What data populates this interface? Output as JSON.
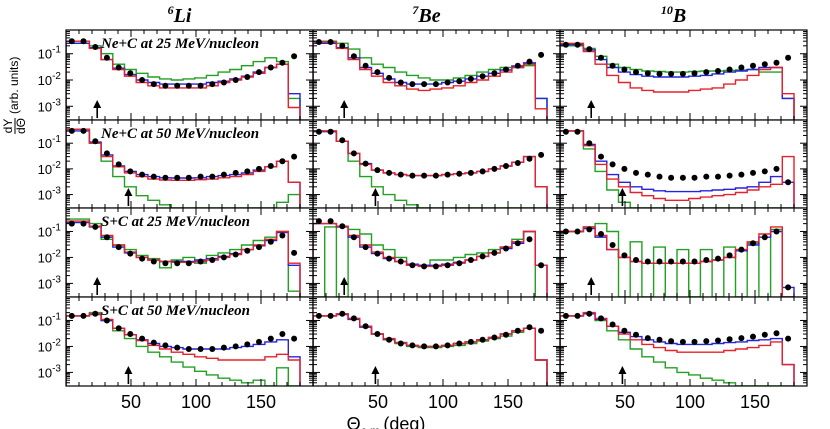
{
  "chart_data": {
    "type": "histogram-grid",
    "xlabel_main": "Θ",
    "xlabel_sub": "c.m.",
    "xlabel_unit": "(deg)",
    "ylabel_main": "(arb. units)",
    "ylabel_num": "dY",
    "ylabel_den": "dΘ",
    "xlim": [
      0,
      190
    ],
    "ylim_log": [
      0.0003,
      0.8
    ],
    "x_ticks": [
      50,
      100,
      150
    ],
    "x_tick_labels": [
      "50",
      "100",
      "150"
    ],
    "y_ticks": [
      0.1,
      0.01,
      0.001
    ],
    "y_tick_labels": [
      {
        "base": "10",
        "exp": "-1"
      },
      {
        "base": "10",
        "exp": "-2"
      },
      {
        "base": "10",
        "exp": "-3"
      }
    ],
    "columns": [
      {
        "mass": "6",
        "element": "Li"
      },
      {
        "mass": "7",
        "element": "Be"
      },
      {
        "mass": "10",
        "element": "B"
      }
    ],
    "rows": [
      {
        "label": "Ne+C at 25 MeV/nucleon",
        "arrow_x": 24
      },
      {
        "label": "Ne+C at 50 MeV/nucleon",
        "arrow_x": 48
      },
      {
        "label": "S+C at 25 MeV/nucleon",
        "arrow_x": 24
      },
      {
        "label": "S+C at 50 MeV/nucleon",
        "arrow_x": 48
      }
    ],
    "series": [
      {
        "name": "data",
        "style": "markers",
        "color": "#000000"
      },
      {
        "name": "model-red",
        "style": "step",
        "color": "#e8202a"
      },
      {
        "name": "model-blue",
        "style": "step",
        "color": "#2424e0"
      },
      {
        "name": "model-green",
        "style": "step",
        "color": "#22a022"
      }
    ],
    "bin_width": 9,
    "bins_start": 0,
    "panels": {
      "0-0": {
        "data": [
          0.3,
          0.3,
          0.18,
          0.07,
          0.03,
          0.018,
          0.01,
          0.007,
          0.006,
          0.006,
          0.006,
          0.006,
          0.007,
          0.008,
          0.01,
          0.013,
          0.02,
          0.03,
          0.045,
          0.08
        ],
        "red": [
          0.3,
          0.3,
          0.16,
          0.06,
          0.025,
          0.014,
          0.008,
          0.006,
          0.005,
          0.005,
          0.005,
          0.005,
          0.006,
          0.008,
          0.01,
          0.013,
          0.018,
          0.03,
          0.04,
          0.0009
        ],
        "blue": [
          0.25,
          0.25,
          0.17,
          0.06,
          0.028,
          0.016,
          0.01,
          0.008,
          0.007,
          0.007,
          0.007,
          0.007,
          0.008,
          0.009,
          0.011,
          0.014,
          0.02,
          0.03,
          0.04,
          0.003
        ],
        "green": [
          0.25,
          0.25,
          0.2,
          0.1,
          0.04,
          0.025,
          0.018,
          0.013,
          0.011,
          0.01,
          0.011,
          0.012,
          0.015,
          0.02,
          0.025,
          0.035,
          0.05,
          0.07,
          0.05,
          0.002
        ]
      },
      "0-1": {
        "data": [
          0.28,
          0.28,
          0.2,
          0.08,
          0.035,
          0.02,
          0.012,
          0.008,
          0.007,
          0.007,
          0.007,
          0.008,
          0.009,
          0.011,
          0.014,
          0.018,
          0.025,
          0.035,
          0.05,
          0.09
        ],
        "red": [
          0.28,
          0.28,
          0.16,
          0.06,
          0.025,
          0.014,
          0.008,
          0.006,
          0.0045,
          0.004,
          0.0045,
          0.005,
          0.006,
          0.008,
          0.01,
          0.014,
          0.02,
          0.03,
          0.04,
          0.0008
        ],
        "blue": [
          0.25,
          0.25,
          0.17,
          0.07,
          0.03,
          0.018,
          0.011,
          0.008,
          0.007,
          0.007,
          0.007,
          0.008,
          0.009,
          0.011,
          0.014,
          0.018,
          0.024,
          0.034,
          0.045,
          0.002
        ],
        "green": [
          0.3,
          0.3,
          0.25,
          0.15,
          0.07,
          0.04,
          0.03,
          0.02,
          0.015,
          0.012,
          0.01,
          0.01,
          0.012,
          0.015,
          0.02,
          0.025,
          0.03,
          0.03,
          0.035,
          0.002
        ]
      },
      "0-2": {
        "data": [
          0.22,
          0.22,
          0.15,
          0.07,
          0.035,
          0.025,
          0.02,
          0.018,
          0.017,
          0.017,
          0.017,
          0.018,
          0.02,
          0.022,
          0.025,
          0.03,
          0.035,
          0.04,
          0.045,
          0.07
        ],
        "red": [
          0.25,
          0.25,
          0.12,
          0.04,
          0.015,
          0.008,
          0.005,
          0.004,
          0.0035,
          0.0035,
          0.0035,
          0.004,
          0.0045,
          0.005,
          0.007,
          0.01,
          0.015,
          0.025,
          0.03,
          0.003
        ],
        "blue": [
          0.22,
          0.22,
          0.14,
          0.06,
          0.03,
          0.02,
          0.016,
          0.014,
          0.013,
          0.013,
          0.013,
          0.014,
          0.015,
          0.017,
          0.02,
          0.022,
          0.025,
          0.03,
          0.03,
          0.002
        ],
        "green": [
          0.2,
          0.2,
          0.16,
          0.08,
          0.04,
          0.03,
          0.025,
          0.022,
          0.021,
          0.02,
          0.02,
          0.021,
          0.022,
          0.022,
          0.023,
          0.024,
          0.025,
          0.02,
          0.02,
          0.002
        ]
      },
      "1-0": {
        "data": [
          0.3,
          0.3,
          0.12,
          0.04,
          0.015,
          0.008,
          0.006,
          0.005,
          0.0045,
          0.0045,
          0.0045,
          0.005,
          0.005,
          0.006,
          0.007,
          0.008,
          0.01,
          0.013,
          0.02,
          0.03
        ],
        "red": [
          0.35,
          0.35,
          0.1,
          0.03,
          0.012,
          0.007,
          0.005,
          0.004,
          0.0037,
          0.0036,
          0.0036,
          0.0038,
          0.004,
          0.0045,
          0.005,
          0.006,
          0.008,
          0.012,
          0.02,
          0.003
        ],
        "blue": [
          0.3,
          0.3,
          0.11,
          0.035,
          0.013,
          0.008,
          0.006,
          0.005,
          0.0045,
          0.0044,
          0.0044,
          0.0045,
          0.005,
          0.0055,
          0.006,
          0.007,
          0.009,
          0.012,
          0.02,
          0.003
        ],
        "green": [
          0.35,
          0.35,
          0.1,
          0.02,
          0.005,
          0.002,
          0.0009,
          0.0006,
          0.0004,
          0.0003,
          0.0003,
          0.0003,
          0.0003,
          0.0003,
          0.0003,
          0.0003,
          0.0003,
          0.0003,
          0.0005,
          0.001
        ]
      },
      "1-1": {
        "data": [
          0.28,
          0.28,
          0.13,
          0.04,
          0.016,
          0.009,
          0.007,
          0.006,
          0.0055,
          0.0055,
          0.0055,
          0.006,
          0.0065,
          0.007,
          0.008,
          0.01,
          0.013,
          0.017,
          0.025,
          0.035
        ],
        "red": [
          0.3,
          0.3,
          0.12,
          0.04,
          0.015,
          0.009,
          0.007,
          0.006,
          0.0055,
          0.0055,
          0.0055,
          0.006,
          0.0065,
          0.007,
          0.008,
          0.01,
          0.013,
          0.018,
          0.03,
          0.002
        ],
        "blue": [
          0.28,
          0.28,
          0.12,
          0.04,
          0.016,
          0.009,
          0.007,
          0.006,
          0.0055,
          0.0055,
          0.0055,
          0.006,
          0.0065,
          0.007,
          0.008,
          0.01,
          0.013,
          0.018,
          0.03,
          0.002
        ],
        "green": [
          0.3,
          0.3,
          0.12,
          0.02,
          0.005,
          0.002,
          0.001,
          0.0006,
          0.0004,
          0.0003,
          0.0003,
          0.0003,
          0.0003,
          0.0003,
          0.0003,
          0.0003,
          0.0003,
          0.0003,
          0.0003,
          0.0003
        ]
      },
      "1-2": {
        "data": [
          0.28,
          0.28,
          0.1,
          0.03,
          0.015,
          0.01,
          0.007,
          0.006,
          0.005,
          0.0045,
          0.0045,
          0.0045,
          0.005,
          0.005,
          0.0055,
          0.006,
          0.007,
          0.008,
          0.01,
          0.003
        ],
        "red": [
          0.3,
          0.3,
          0.08,
          0.015,
          0.004,
          0.002,
          0.0012,
          0.0009,
          0.0007,
          0.0006,
          0.0006,
          0.0007,
          0.0008,
          0.0009,
          0.001,
          0.0012,
          0.0015,
          0.002,
          0.0025,
          0.03
        ],
        "blue": [
          0.3,
          0.3,
          0.09,
          0.02,
          0.006,
          0.003,
          0.002,
          0.0016,
          0.0014,
          0.0013,
          0.0013,
          0.0013,
          0.0014,
          0.0015,
          0.0016,
          0.0018,
          0.002,
          0.003,
          0.005,
          0.003
        ],
        "green": [
          0.3,
          0.3,
          0.06,
          0.008,
          0.0015,
          0.0005,
          0.0003,
          0.0003,
          0.0003,
          0.0003,
          0.0003,
          0.0003,
          0.0003,
          0.0003,
          0.0003,
          0.0003,
          0.0003,
          0.0003,
          0.0003,
          0.0003
        ]
      },
      "2-0": {
        "data": [
          0.2,
          0.2,
          0.15,
          0.06,
          0.025,
          0.014,
          0.009,
          0.007,
          0.006,
          0.006,
          0.006,
          0.007,
          0.008,
          0.01,
          0.013,
          0.018,
          0.025,
          0.04,
          0.07,
          0.015
        ],
        "red": [
          0.25,
          0.25,
          0.16,
          0.07,
          0.03,
          0.016,
          0.01,
          0.008,
          0.007,
          0.0065,
          0.0065,
          0.007,
          0.008,
          0.01,
          0.013,
          0.02,
          0.03,
          0.05,
          0.1,
          0.006
        ],
        "blue": [
          0.22,
          0.22,
          0.15,
          0.06,
          0.025,
          0.015,
          0.01,
          0.008,
          0.007,
          0.007,
          0.007,
          0.008,
          0.009,
          0.011,
          0.014,
          0.02,
          0.028,
          0.045,
          0.09,
          0.005
        ],
        "green": [
          0.3,
          0.3,
          0.2,
          0.05,
          0.03,
          0.02,
          0.012,
          0.009,
          0.004,
          0.008,
          0.01,
          0.006,
          0.012,
          0.015,
          0.02,
          0.03,
          0.045,
          0.06,
          0.1,
          0.0005
        ]
      },
      "2-1": {
        "data": [
          0.25,
          0.25,
          0.16,
          0.06,
          0.025,
          0.014,
          0.009,
          0.007,
          0.005,
          0.0045,
          0.0045,
          0.005,
          0.006,
          0.008,
          0.011,
          0.015,
          0.022,
          0.035,
          0.05,
          0.005
        ],
        "red": [
          0.2,
          0.2,
          0.16,
          0.07,
          0.03,
          0.016,
          0.01,
          0.007,
          0.005,
          0.0045,
          0.0045,
          0.005,
          0.006,
          0.008,
          0.011,
          0.015,
          0.025,
          0.04,
          0.1,
          0.005
        ],
        "blue": [
          0.2,
          0.2,
          0.15,
          0.06,
          0.025,
          0.014,
          0.009,
          0.007,
          0.0055,
          0.005,
          0.005,
          0.0055,
          0.0065,
          0.008,
          0.011,
          0.015,
          0.022,
          0.035,
          0.1,
          0.005
        ],
        "green": [
          0.0003,
          0.15,
          0.0003,
          0.12,
          0.08,
          0.03,
          0.02,
          0.01,
          0.005,
          0.005,
          0.008,
          0.008,
          0.01,
          0.013,
          0.015,
          0.02,
          0.025,
          0.05,
          0.1,
          0.0003
        ]
      },
      "2-2": {
        "data": [
          0.1,
          0.1,
          0.12,
          0.08,
          0.03,
          0.012,
          0.008,
          0.007,
          0.007,
          0.007,
          0.007,
          0.007,
          0.008,
          0.009,
          0.012,
          0.02,
          0.035,
          0.06,
          0.1,
          0.0007
        ],
        "red": [
          0.1,
          0.1,
          0.15,
          0.07,
          0.02,
          0.01,
          0.007,
          0.006,
          0.006,
          0.006,
          0.006,
          0.006,
          0.007,
          0.008,
          0.01,
          0.02,
          0.04,
          0.08,
          0.15,
          0.0003
        ],
        "blue": [
          0.1,
          0.1,
          0.13,
          0.06,
          0.02,
          0.01,
          0.007,
          0.006,
          0.006,
          0.006,
          0.006,
          0.006,
          0.007,
          0.008,
          0.01,
          0.018,
          0.03,
          0.06,
          0.1,
          0.0007
        ],
        "green": [
          0.1,
          0.1,
          0.15,
          0.2,
          0.1,
          0.0003,
          0.04,
          0.0003,
          0.025,
          0.0003,
          0.02,
          0.0003,
          0.02,
          0.0003,
          0.025,
          0.0003,
          0.035,
          0.0003,
          0.12,
          0.0003
        ]
      },
      "3-0": {
        "data": [
          0.15,
          0.15,
          0.18,
          0.1,
          0.05,
          0.03,
          0.02,
          0.014,
          0.011,
          0.009,
          0.008,
          0.008,
          0.008,
          0.009,
          0.01,
          0.012,
          0.015,
          0.02,
          0.03,
          0.02
        ],
        "red": [
          0.15,
          0.15,
          0.18,
          0.11,
          0.05,
          0.028,
          0.017,
          0.011,
          0.008,
          0.006,
          0.005,
          0.004,
          0.0035,
          0.003,
          0.003,
          0.003,
          0.003,
          0.004,
          0.005,
          0.003
        ],
        "blue": [
          0.15,
          0.15,
          0.17,
          0.1,
          0.05,
          0.028,
          0.018,
          0.013,
          0.01,
          0.009,
          0.008,
          0.008,
          0.008,
          0.008,
          0.009,
          0.01,
          0.012,
          0.015,
          0.018,
          0.004
        ],
        "green": [
          0.15,
          0.15,
          0.2,
          0.1,
          0.04,
          0.02,
          0.01,
          0.006,
          0.004,
          0.0025,
          0.0016,
          0.0011,
          0.0008,
          0.0006,
          0.0005,
          0.0004,
          0.0005,
          0.0003,
          0.0015,
          0.0003
        ]
      },
      "3-1": {
        "data": [
          0.15,
          0.15,
          0.18,
          0.12,
          0.06,
          0.03,
          0.018,
          0.013,
          0.011,
          0.01,
          0.01,
          0.011,
          0.013,
          0.015,
          0.018,
          0.022,
          0.028,
          0.04,
          0.055,
          0.04
        ],
        "red": [
          0.15,
          0.15,
          0.18,
          0.12,
          0.06,
          0.03,
          0.02,
          0.014,
          0.011,
          0.01,
          0.01,
          0.011,
          0.013,
          0.015,
          0.018,
          0.022,
          0.03,
          0.04,
          0.05,
          0.003
        ],
        "blue": [
          0.15,
          0.15,
          0.17,
          0.11,
          0.055,
          0.03,
          0.019,
          0.014,
          0.011,
          0.01,
          0.01,
          0.011,
          0.013,
          0.015,
          0.018,
          0.022,
          0.03,
          0.04,
          0.05,
          0.003
        ],
        "green": [
          0.15,
          0.15,
          0.18,
          0.12,
          0.06,
          0.03,
          0.018,
          0.013,
          0.01,
          0.009,
          0.009,
          0.01,
          0.011,
          0.013,
          0.016,
          0.02,
          0.025,
          0.035,
          0.05,
          0.003
        ]
      },
      "3-2": {
        "data": [
          0.15,
          0.15,
          0.18,
          0.12,
          0.07,
          0.04,
          0.028,
          0.021,
          0.018,
          0.016,
          0.015,
          0.015,
          0.016,
          0.017,
          0.019,
          0.021,
          0.024,
          0.028,
          0.032,
          0.02
        ],
        "red": [
          0.15,
          0.15,
          0.2,
          0.12,
          0.06,
          0.03,
          0.018,
          0.012,
          0.009,
          0.007,
          0.006,
          0.006,
          0.006,
          0.006,
          0.007,
          0.008,
          0.009,
          0.011,
          0.015,
          0.002
        ],
        "blue": [
          0.15,
          0.15,
          0.18,
          0.11,
          0.06,
          0.035,
          0.024,
          0.018,
          0.015,
          0.013,
          0.012,
          0.012,
          0.012,
          0.013,
          0.014,
          0.015,
          0.017,
          0.018,
          0.02,
          0.002
        ],
        "green": [
          0.15,
          0.15,
          0.18,
          0.1,
          0.04,
          0.018,
          0.008,
          0.004,
          0.0025,
          0.0015,
          0.001,
          0.0008,
          0.0006,
          0.0005,
          0.0004,
          0.0003,
          0.0003,
          0.0003,
          0.0003,
          0.0003
        ]
      }
    }
  }
}
